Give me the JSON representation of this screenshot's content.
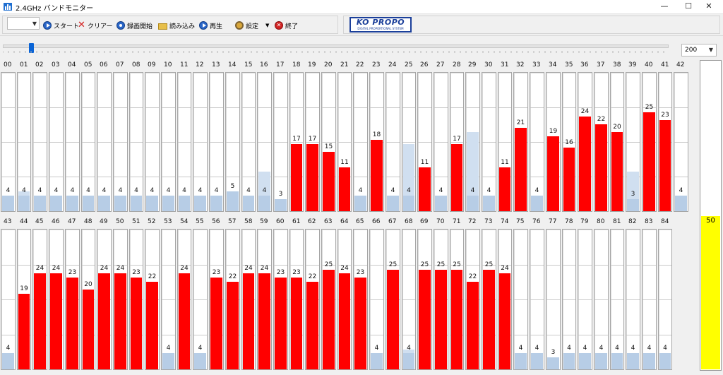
{
  "window": {
    "title": "2.4GHz バンドモニター",
    "minimize": "—",
    "maximize": "☐",
    "close": "✕"
  },
  "toolbar": {
    "start_label": "スタート",
    "clear_label": "クリアー",
    "record_label": "録画開始",
    "load_label": "読み込み",
    "play_label": "再生",
    "settings_label": "設定",
    "exit_label": "終了"
  },
  "logo": {
    "text": "KO PROPO",
    "sub": "DIGITAL PROPORTIONAL SYSTEM"
  },
  "slider": {
    "position": 0.04
  },
  "sample_select": {
    "value": "200"
  },
  "scale_max": 50,
  "channels": [
    {
      "id": "00",
      "value": 4,
      "peak": 4
    },
    {
      "id": "01",
      "value": 4,
      "peak": 5
    },
    {
      "id": "02",
      "value": 4,
      "peak": 4
    },
    {
      "id": "03",
      "value": 4,
      "peak": 4
    },
    {
      "id": "04",
      "value": 4,
      "peak": 4
    },
    {
      "id": "05",
      "value": 4,
      "peak": 4
    },
    {
      "id": "06",
      "value": 4,
      "peak": 4
    },
    {
      "id": "07",
      "value": 4,
      "peak": 4
    },
    {
      "id": "08",
      "value": 4,
      "peak": 4
    },
    {
      "id": "09",
      "value": 4,
      "peak": 4
    },
    {
      "id": "10",
      "value": 4,
      "peak": 4
    },
    {
      "id": "11",
      "value": 4,
      "peak": 4
    },
    {
      "id": "12",
      "value": 4,
      "peak": 4
    },
    {
      "id": "13",
      "value": 4,
      "peak": 4
    },
    {
      "id": "14",
      "value": 5,
      "peak": 5
    },
    {
      "id": "15",
      "value": 4,
      "peak": 4
    },
    {
      "id": "16",
      "value": 4,
      "peak": 10
    },
    {
      "id": "17",
      "value": 3,
      "peak": 3
    },
    {
      "id": "18",
      "value": 17,
      "peak": 17
    },
    {
      "id": "19",
      "value": 17,
      "peak": 17
    },
    {
      "id": "20",
      "value": 15,
      "peak": 15
    },
    {
      "id": "21",
      "value": 11,
      "peak": 11
    },
    {
      "id": "22",
      "value": 4,
      "peak": 4
    },
    {
      "id": "23",
      "value": 18,
      "peak": 18
    },
    {
      "id": "24",
      "value": 4,
      "peak": 4
    },
    {
      "id": "25",
      "value": 4,
      "peak": 17
    },
    {
      "id": "26",
      "value": 11,
      "peak": 11
    },
    {
      "id": "27",
      "value": 4,
      "peak": 4
    },
    {
      "id": "28",
      "value": 17,
      "peak": 17
    },
    {
      "id": "29",
      "value": 4,
      "peak": 20
    },
    {
      "id": "30",
      "value": 4,
      "peak": 4
    },
    {
      "id": "31",
      "value": 11,
      "peak": 11
    },
    {
      "id": "32",
      "value": 21,
      "peak": 21
    },
    {
      "id": "33",
      "value": 4,
      "peak": 4
    },
    {
      "id": "34",
      "value": 19,
      "peak": 19
    },
    {
      "id": "35",
      "value": 16,
      "peak": 16
    },
    {
      "id": "36",
      "value": 24,
      "peak": 24
    },
    {
      "id": "37",
      "value": 22,
      "peak": 22
    },
    {
      "id": "38",
      "value": 20,
      "peak": 20
    },
    {
      "id": "39",
      "value": 3,
      "peak": 10
    },
    {
      "id": "40",
      "value": 25,
      "peak": 25
    },
    {
      "id": "41",
      "value": 23,
      "peak": 23
    },
    {
      "id": "42",
      "value": 4,
      "peak": 4
    },
    {
      "id": "43",
      "value": 4,
      "peak": 4
    },
    {
      "id": "44",
      "value": 19,
      "peak": 19
    },
    {
      "id": "45",
      "value": 24,
      "peak": 24
    },
    {
      "id": "46",
      "value": 24,
      "peak": 24
    },
    {
      "id": "47",
      "value": 23,
      "peak": 23
    },
    {
      "id": "48",
      "value": 20,
      "peak": 20
    },
    {
      "id": "49",
      "value": 24,
      "peak": 24
    },
    {
      "id": "50",
      "value": 24,
      "peak": 24
    },
    {
      "id": "51",
      "value": 23,
      "peak": 23
    },
    {
      "id": "52",
      "value": 22,
      "peak": 22
    },
    {
      "id": "53",
      "value": 4,
      "peak": 4
    },
    {
      "id": "54",
      "value": 24,
      "peak": 24
    },
    {
      "id": "55",
      "value": 4,
      "peak": 4
    },
    {
      "id": "56",
      "value": 23,
      "peak": 23
    },
    {
      "id": "57",
      "value": 22,
      "peak": 22
    },
    {
      "id": "58",
      "value": 24,
      "peak": 24
    },
    {
      "id": "59",
      "value": 24,
      "peak": 24
    },
    {
      "id": "60",
      "value": 23,
      "peak": 23
    },
    {
      "id": "61",
      "value": 23,
      "peak": 23
    },
    {
      "id": "62",
      "value": 22,
      "peak": 22
    },
    {
      "id": "63",
      "value": 25,
      "peak": 25
    },
    {
      "id": "64",
      "value": 24,
      "peak": 24
    },
    {
      "id": "65",
      "value": 23,
      "peak": 23
    },
    {
      "id": "66",
      "value": 4,
      "peak": 4
    },
    {
      "id": "67",
      "value": 25,
      "peak": 25
    },
    {
      "id": "68",
      "value": 4,
      "peak": 5
    },
    {
      "id": "69",
      "value": 25,
      "peak": 25
    },
    {
      "id": "70",
      "value": 25,
      "peak": 25
    },
    {
      "id": "71",
      "value": 25,
      "peak": 25
    },
    {
      "id": "72",
      "value": 22,
      "peak": 22
    },
    {
      "id": "73",
      "value": 25,
      "peak": 25
    },
    {
      "id": "74",
      "value": 24,
      "peak": 24
    },
    {
      "id": "75",
      "value": 4,
      "peak": 4
    },
    {
      "id": "76",
      "value": 4,
      "peak": 4
    },
    {
      "id": "77",
      "value": 3,
      "peak": 3
    },
    {
      "id": "78",
      "value": 4,
      "peak": 4
    },
    {
      "id": "79",
      "value": 4,
      "peak": 4
    },
    {
      "id": "80",
      "value": 4,
      "peak": 4
    },
    {
      "id": "81",
      "value": 4,
      "peak": 4
    },
    {
      "id": "82",
      "value": 4,
      "peak": 4
    },
    {
      "id": "83",
      "value": 4,
      "peak": 4
    },
    {
      "id": "84",
      "value": 4,
      "peak": 4
    }
  ],
  "level_meter": {
    "value": 50
  },
  "colors": {
    "bar_high": "#ff0000",
    "bar_low": "#b7cde6",
    "peak": "#d0dff0",
    "meter": "#ffff00"
  },
  "threshold": 10
}
